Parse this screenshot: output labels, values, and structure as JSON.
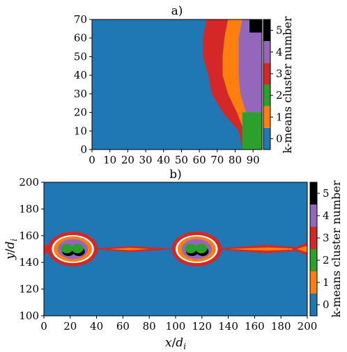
{
  "chart_data": [
    {
      "type": "heatmap",
      "title": "a)",
      "xlabel": "",
      "ylabel": "",
      "xlim": [
        0,
        95
      ],
      "ylim": [
        0,
        70
      ],
      "x_ticks": [
        "0",
        "10",
        "20",
        "30",
        "40",
        "50",
        "60",
        "70",
        "80",
        "90"
      ],
      "y_ticks": [
        "0",
        "10",
        "20",
        "30",
        "40",
        "50",
        "60",
        "70"
      ],
      "colorbar": {
        "label": "k-means cluster number",
        "ticks": [
          "0",
          "1",
          "2",
          "3",
          "4",
          "5"
        ],
        "colors": [
          "#1f77b4",
          "#ff7f0e",
          "#2ca02c",
          "#d62728",
          "#9467bd",
          "#000000"
        ]
      },
      "cluster_boundaries": {
        "description_x_at_y": [
          0,
          10,
          20,
          30,
          40,
          50,
          60,
          70
        ],
        "cluster0_to_3": [
          84,
          82,
          73,
          67,
          65,
          62,
          62,
          64
        ],
        "cluster3_to_1": [
          85,
          85,
          81,
          76,
          73,
          73,
          74,
          76
        ],
        "cluster1_to_4": [
          86,
          86,
          86,
          83,
          82,
          82,
          82,
          84
        ],
        "cluster2_region_x": [
          84,
          95
        ],
        "cluster2_region_y": [
          0,
          20
        ],
        "cluster5_region_x": [
          88,
          95
        ],
        "cluster5_region_y": [
          63,
          70
        ]
      }
    },
    {
      "type": "heatmap",
      "title": "b)",
      "xlabel": "x/d_i",
      "ylabel": "y/d_i",
      "xlim": [
        0,
        200
      ],
      "ylim": [
        100,
        200
      ],
      "x_ticks": [
        "0",
        "20",
        "40",
        "60",
        "80",
        "100",
        "120",
        "140",
        "160",
        "180",
        "200"
      ],
      "y_ticks": [
        "100",
        "120",
        "140",
        "160",
        "180",
        "200"
      ],
      "colorbar": {
        "label": "k-means cluster number",
        "ticks": [
          "0",
          "1",
          "2",
          "3",
          "4",
          "5"
        ],
        "colors": [
          "#1f77b4",
          "#ff7f0e",
          "#2ca02c",
          "#d62728",
          "#9467bd",
          "#000000"
        ]
      },
      "islands": [
        {
          "center_x": 22,
          "center_y": 150
        },
        {
          "center_x": 116,
          "center_y": 150
        }
      ]
    }
  ]
}
